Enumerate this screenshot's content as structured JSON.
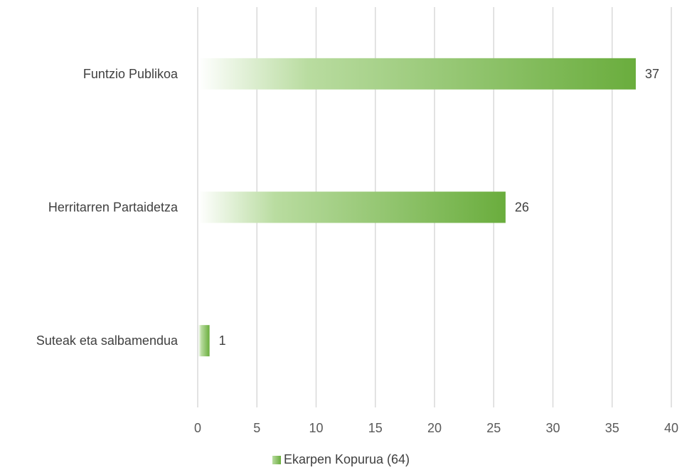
{
  "chart_data": {
    "type": "bar",
    "orientation": "horizontal",
    "categories": [
      "Funtzio Publikoa",
      "Herritarren Partaidetza",
      "Suteak eta salbamendua"
    ],
    "series": [
      {
        "name": "Ekarpen Kopurua (64)",
        "values": [
          37,
          26,
          1
        ]
      }
    ],
    "xlim": [
      0,
      40
    ],
    "x_ticks": [
      "0",
      "5",
      "10",
      "15",
      "20",
      "25",
      "30",
      "35",
      "40"
    ],
    "data_labels": [
      "37",
      "26",
      "1"
    ],
    "grid": "vertical",
    "legend_position": "bottom",
    "colors": {
      "bar_start": "#ffffff",
      "bar_end": "#6aad3d",
      "grid": "#d9d9d9"
    }
  }
}
